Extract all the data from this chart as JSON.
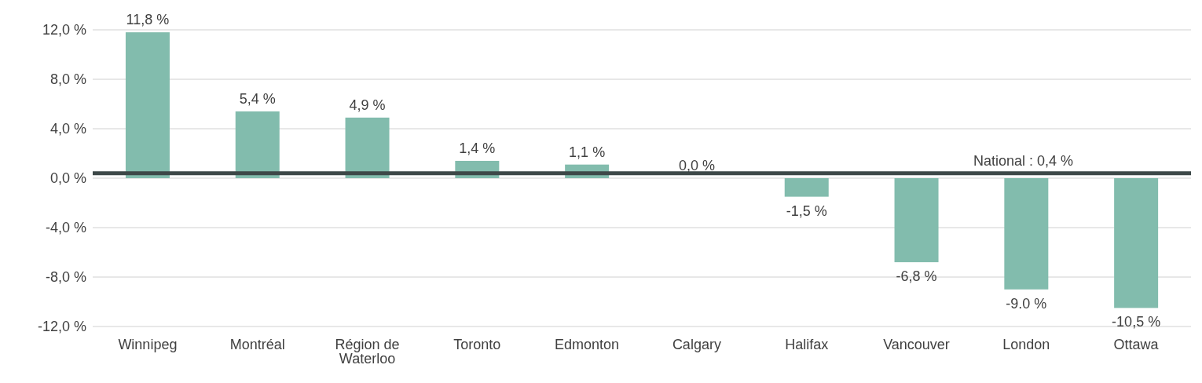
{
  "chart_data": {
    "type": "bar",
    "categories": [
      "Winnipeg",
      "Montréal",
      "Région de Waterloo",
      "Toronto",
      "Edmonton",
      "Calgary",
      "Halifax",
      "Vancouver",
      "London",
      "Ottawa"
    ],
    "values": [
      11.8,
      5.4,
      4.9,
      1.4,
      1.1,
      0.0,
      -1.5,
      -6.8,
      -9.0,
      -10.5
    ],
    "value_labels": [
      "11,8 %",
      "5,4 %",
      "4,9 %",
      "1,4 %",
      "1,1 %",
      "0,0 %",
      "-1,5 %",
      "-6,8 %",
      "-9.0 %",
      "-10,5 %"
    ],
    "color": "#82bcad",
    "ylim": [
      -12,
      12
    ],
    "yticks": [
      {
        "value": -12,
        "label": "-12,0 %"
      },
      {
        "value": -8,
        "label": "-8,0 %"
      },
      {
        "value": -4,
        "label": "-4,0 %"
      },
      {
        "value": 0,
        "label": "0,0 %"
      },
      {
        "value": 4,
        "label": "4,0 %"
      },
      {
        "value": 8,
        "label": "8,0 %"
      },
      {
        "value": 12,
        "label": "12,0 %"
      }
    ],
    "grid": "y",
    "ref_lines": [
      {
        "axis": "y",
        "value": 0.4,
        "label": "National : 0,4 %",
        "color": "#3d4848"
      }
    ]
  }
}
